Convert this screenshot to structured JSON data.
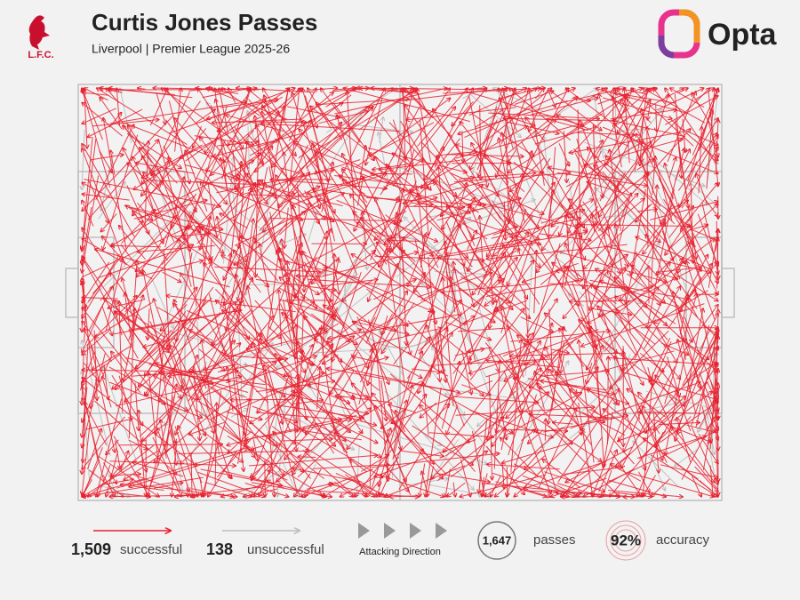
{
  "chart_data": {
    "type": "pass-map",
    "title": "Curtis Jones Passes",
    "subtitle": "Liverpool | Premier League 2025-26",
    "logo_text": "L.F.C.",
    "brand": "Opta",
    "series": [
      {
        "name": "successful",
        "color": "#e8212f",
        "values": [
          1509
        ],
        "value_labels": [
          "1,509"
        ]
      },
      {
        "name": "unsuccessful",
        "color": "#bdbdbd",
        "values": [
          138
        ],
        "value_labels": [
          "138"
        ]
      }
    ],
    "direction_label": "Attacking Direction",
    "total": {
      "name": "passes",
      "value": 1647,
      "label": "1,647"
    },
    "accuracy": {
      "name": "accuracy",
      "value": 92,
      "label": "92%"
    }
  }
}
